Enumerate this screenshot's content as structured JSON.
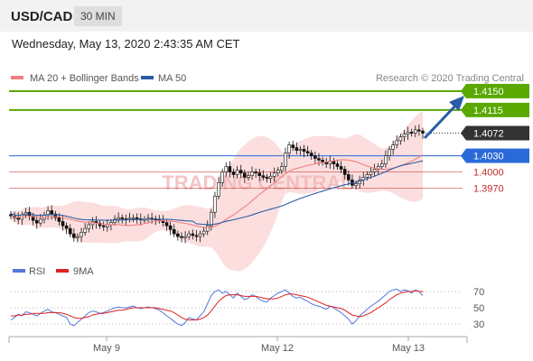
{
  "header": {
    "pair": "USD/CAD",
    "timeframe": "30 MIN"
  },
  "datetime": "Wednesday, May 13, 2020 2:43:35 AM CET",
  "legend": {
    "ma20": {
      "label": "MA 20 + Bollinger Bands",
      "color": "#f08080"
    },
    "ma50": {
      "label": "MA 50",
      "color": "#2a5ca8"
    },
    "credit": "Research © 2020 Trading Central"
  },
  "watermark": "TRADING CENTRAL",
  "levels": [
    {
      "label": "1.4150",
      "value": 1.415,
      "kind": "resistance",
      "color": "#5aa800"
    },
    {
      "label": "1.4115",
      "value": 1.4115,
      "kind": "resistance",
      "color": "#5aa800"
    },
    {
      "label": "1.4072",
      "value": 1.4072,
      "kind": "last",
      "color": "#333333"
    },
    {
      "label": "1.4030",
      "value": 1.403,
      "kind": "pivot",
      "color": "#2a6ad8"
    },
    {
      "label": "1.4000",
      "value": 1.4,
      "kind": "support",
      "color": "#c62828"
    },
    {
      "label": "1.3970",
      "value": 1.397,
      "kind": "support",
      "color": "#c62828"
    }
  ],
  "rsi_legend": {
    "rsi": {
      "label": "RSI",
      "color": "#5577dd"
    },
    "ma9": {
      "label": "9MA",
      "color": "#dd2222"
    }
  },
  "rsi_levels": [
    "70",
    "50",
    "30"
  ],
  "x_labels": [
    "May 9",
    "May 12",
    "May 13"
  ],
  "chart_data": [
    {
      "type": "candlestick",
      "title": "USD/CAD 30 MIN",
      "ylim": [
        1.385,
        1.4165
      ],
      "close_estimate": [
        1.3918,
        1.3915,
        1.3912,
        1.392,
        1.3925,
        1.3918,
        1.391,
        1.3905,
        1.3912,
        1.392,
        1.3928,
        1.3922,
        1.3915,
        1.3908,
        1.39,
        1.3895,
        1.3885,
        1.3878,
        1.388,
        1.3888,
        1.3895,
        1.3902,
        1.3908,
        1.3905,
        1.39,
        1.3898,
        1.3902,
        1.3906,
        1.3912,
        1.3915,
        1.3913,
        1.3912,
        1.3914,
        1.3915,
        1.3913,
        1.3911,
        1.3912,
        1.3914,
        1.3913,
        1.3912,
        1.391,
        1.3906,
        1.39,
        1.3893,
        1.3885,
        1.388,
        1.3878,
        1.388,
        1.3885,
        1.3882,
        1.388,
        1.3885,
        1.389,
        1.39,
        1.3925,
        1.3955,
        1.398,
        1.4,
        1.401,
        1.4,
        1.3995,
        1.4003,
        1.3998,
        1.399,
        1.3993,
        1.4,
        1.3998,
        1.3993,
        1.399,
        1.3988,
        1.3992,
        1.3998,
        1.4003,
        1.401,
        1.4035,
        1.405,
        1.4045,
        1.404,
        1.4042,
        1.4038,
        1.4035,
        1.403,
        1.4025,
        1.4022,
        1.4018,
        1.4015,
        1.402,
        1.4015,
        1.401,
        1.4005,
        1.3995,
        1.3985,
        1.3975,
        1.3978,
        1.3985,
        1.399,
        1.3995,
        1.4,
        1.4005,
        1.401,
        1.4015,
        1.403,
        1.4042,
        1.405,
        1.4058,
        1.4065,
        1.407,
        1.4074,
        1.4072,
        1.4078,
        1.4076,
        1.4072
      ],
      "rsi_estimate": [
        35,
        38,
        42,
        40,
        45,
        44,
        42,
        40,
        43,
        46,
        48,
        45,
        44,
        42,
        40,
        38,
        30,
        28,
        32,
        36,
        40,
        44,
        46,
        45,
        43,
        44,
        46,
        48,
        50,
        51,
        50,
        50,
        51,
        52,
        50,
        49,
        50,
        51,
        50,
        49,
        47,
        44,
        40,
        37,
        33,
        30,
        28,
        32,
        38,
        36,
        35,
        40,
        45,
        55,
        65,
        70,
        72,
        68,
        70,
        66,
        62,
        68,
        64,
        60,
        62,
        66,
        64,
        60,
        58,
        57,
        62,
        65,
        68,
        70,
        72,
        68,
        64,
        62,
        63,
        60,
        58,
        55,
        53,
        52,
        50,
        48,
        52,
        50,
        47,
        44,
        40,
        36,
        30,
        34,
        40,
        44,
        48,
        52,
        55,
        58,
        62,
        66,
        70,
        72,
        73,
        70,
        72,
        71,
        68,
        72,
        70,
        65
      ],
      "ma9_estimate": [
        40,
        40,
        41,
        41,
        42,
        42,
        43,
        43,
        43,
        43,
        44,
        44,
        44,
        44,
        43,
        42,
        40,
        38,
        37,
        37,
        38,
        39,
        41,
        42,
        43,
        43,
        44,
        45,
        46,
        47,
        47,
        48,
        49,
        50,
        50,
        50,
        50,
        50,
        50,
        50,
        49,
        48,
        47,
        46,
        44,
        41,
        38,
        36,
        35,
        35,
        35,
        36,
        38,
        41,
        46,
        52,
        58,
        62,
        65,
        66,
        66,
        66,
        65,
        64,
        64,
        64,
        64,
        63,
        62,
        61,
        61,
        61,
        62,
        64,
        66,
        67,
        67,
        66,
        65,
        64,
        63,
        61,
        59,
        57,
        55,
        53,
        52,
        51,
        50,
        49,
        47,
        44,
        41,
        40,
        39,
        40,
        42,
        44,
        47,
        50,
        53,
        56,
        60,
        63,
        66,
        68,
        69,
        70,
        70,
        71,
        70,
        70
      ],
      "rsi_ylim": [
        0,
        100
      ]
    }
  ]
}
